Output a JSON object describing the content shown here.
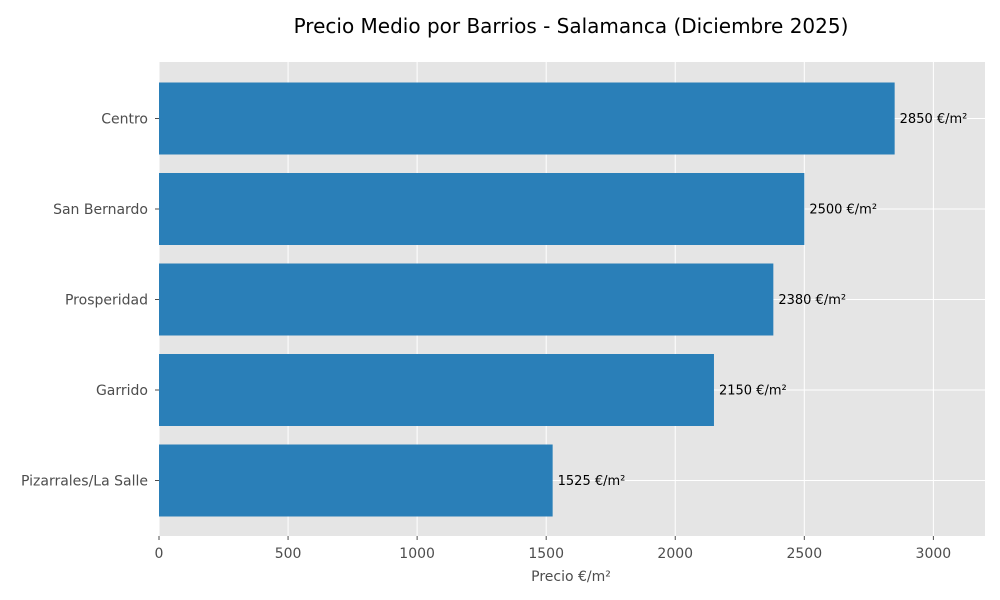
{
  "chart_data": {
    "type": "bar",
    "orientation": "horizontal",
    "title": "Precio Medio por Barrios - Salamanca (Diciembre 2025)",
    "xlabel": "Precio €/m²",
    "ylabel": "",
    "categories": [
      "Centro",
      "San Bernardo",
      "Prosperidad",
      "Garrido",
      "Pizarrales/La Salle"
    ],
    "values": [
      2850,
      2500,
      2380,
      2150,
      1525
    ],
    "value_labels": [
      "2850 €/m²",
      "2500 €/m²",
      "2380 €/m²",
      "2150 €/m²",
      "1525 €/m²"
    ],
    "xlim": [
      0,
      3200
    ],
    "xticks": [
      0,
      500,
      1000,
      1500,
      2000,
      2500,
      3000
    ],
    "xtick_labels": [
      "0",
      "500",
      "1000",
      "1500",
      "2000",
      "2500",
      "3000"
    ],
    "grid": true,
    "colors": {
      "bar": "#2a7fb8",
      "plot_background": "#e5e5e5",
      "grid": "#ffffff"
    }
  }
}
